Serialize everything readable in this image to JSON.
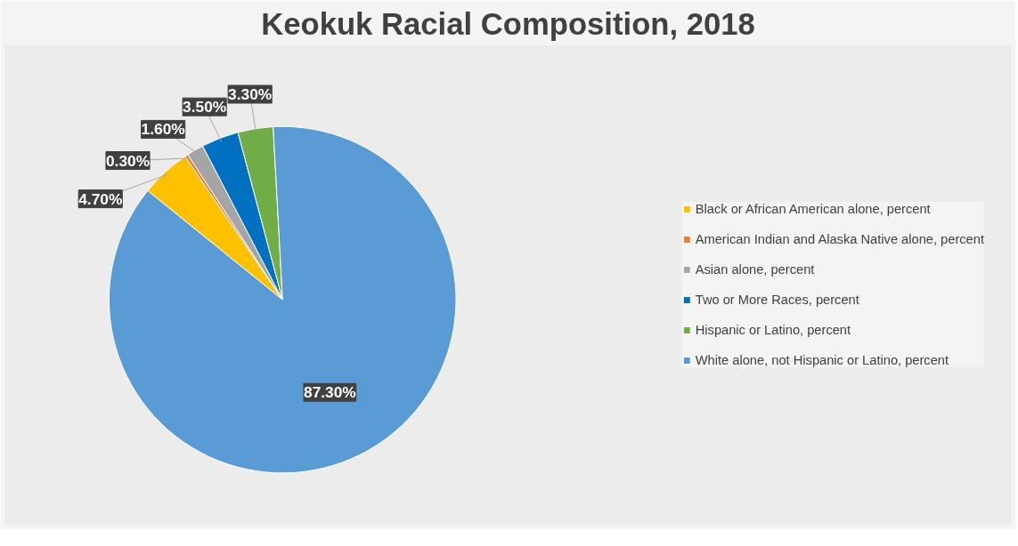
{
  "chart_data": {
    "type": "pie",
    "title": "Keokuk Racial Composition, 2018",
    "categories": [
      "Black or African American alone, percent",
      "American Indian and Alaska Native alone, percent",
      "Asian alone, percent",
      "Two or More Races, percent",
      "Hispanic or Latino, percent",
      "White alone, not Hispanic or Latino, percent"
    ],
    "values": [
      4.7,
      0.3,
      1.6,
      3.5,
      3.3,
      87.3
    ],
    "colors": [
      "#ffc000",
      "#ed7d31",
      "#a5a5a5",
      "#0070c0",
      "#70ad47",
      "#5b9bd5"
    ],
    "value_labels": [
      "4.70%",
      "0.30%",
      "1.60%",
      "3.50%",
      "3.30%",
      "87.30%"
    ],
    "legend": "right"
  }
}
